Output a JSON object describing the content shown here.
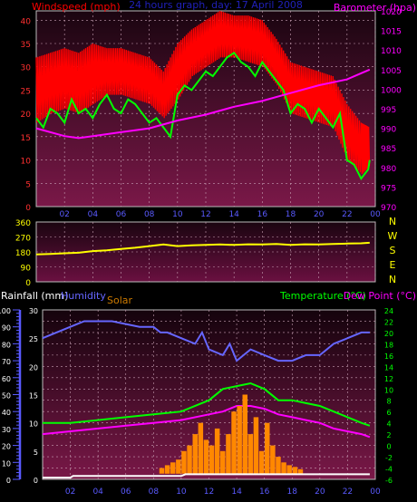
{
  "chart_data": [
    {
      "id": "wind_baro",
      "type": "line",
      "title": "24 hours graph, day: 17 April 2008",
      "left_label": "Windspeed (mph)",
      "right_label": "Barometer (hpa)",
      "ylim": [
        0,
        42
      ],
      "y_ticks": [
        0,
        5,
        10,
        15,
        20,
        25,
        30,
        35,
        40
      ],
      "y2lim": [
        970,
        1020
      ],
      "y2_ticks": [
        970,
        975,
        980,
        985,
        990,
        995,
        1000,
        1005,
        1010,
        1015,
        1020
      ],
      "x_ticks": [
        "02",
        "04",
        "06",
        "08",
        "10",
        "12",
        "14",
        "16",
        "18",
        "20",
        "22",
        "00"
      ],
      "x_range": [
        0,
        24
      ],
      "grid": true,
      "series": [
        {
          "name": "Windspeed",
          "axis": "left",
          "color": "#ff0000",
          "style": "band",
          "x": [
            0,
            1,
            2,
            3,
            4,
            5,
            6,
            7,
            8,
            9,
            10,
            11,
            12,
            13,
            14,
            15,
            16,
            17,
            18,
            19,
            20,
            21,
            22,
            23,
            23.6
          ],
          "low": [
            18,
            20,
            21,
            20,
            22,
            24,
            24,
            23,
            22,
            19,
            23,
            28,
            30,
            32,
            32,
            31,
            30,
            26,
            20,
            19,
            18,
            17,
            10,
            7,
            9
          ],
          "high": [
            32,
            33,
            34,
            33,
            35,
            34,
            34,
            33,
            32,
            29,
            35,
            38,
            40,
            42,
            41,
            41,
            40,
            36,
            31,
            30,
            29,
            28,
            22,
            18,
            17
          ]
        },
        {
          "name": "Wind",
          "axis": "left",
          "color": "#00ff00",
          "style": "line",
          "x": [
            0,
            0.5,
            1,
            1.5,
            2,
            2.5,
            3,
            3.5,
            4,
            4.5,
            5,
            5.5,
            6,
            6.5,
            7,
            7.5,
            8,
            8.5,
            9,
            9.5,
            10,
            10.5,
            11,
            11.5,
            12,
            12.5,
            13,
            13.5,
            14,
            14.5,
            15,
            15.5,
            16,
            16.5,
            17,
            17.5,
            18,
            18.5,
            19,
            19.5,
            20,
            20.5,
            21,
            21.5,
            22,
            22.5,
            23,
            23.5,
            23.6
          ],
          "y": [
            19,
            17,
            21,
            20,
            18,
            23,
            20,
            21,
            19,
            22,
            24,
            21,
            20,
            23,
            22,
            20,
            18,
            19,
            17,
            15,
            24,
            26,
            25,
            27,
            29,
            28,
            30,
            32,
            33,
            31,
            30,
            28,
            31,
            29,
            27,
            25,
            20,
            22,
            21,
            18,
            21,
            19,
            17,
            20,
            10,
            9,
            6,
            8,
            10
          ]
        },
        {
          "name": "Barometer",
          "axis": "right",
          "color": "#ff00ff",
          "style": "line",
          "x": [
            0,
            2,
            3,
            4,
            6,
            8,
            10,
            12,
            14,
            16,
            18,
            20,
            22,
            23.6
          ],
          "y": [
            990,
            988,
            987.5,
            988,
            989,
            990,
            992,
            993.5,
            995.5,
            997,
            999,
            1001,
            1002.5,
            1005
          ]
        }
      ]
    },
    {
      "id": "direction",
      "type": "line",
      "left_ticks": [
        0,
        90,
        180,
        270,
        360
      ],
      "ylim": [
        0,
        360
      ],
      "compass_labels": [
        "N",
        "W",
        "S",
        "E",
        "N"
      ],
      "x_range": [
        0,
        24
      ],
      "grid": true,
      "series": [
        {
          "name": "Wind direction",
          "color": "#ffff00",
          "x": [
            0,
            1,
            2,
            3,
            4,
            5,
            6,
            7,
            8,
            9,
            10,
            11,
            12,
            13,
            14,
            15,
            16,
            17,
            18,
            19,
            20,
            21,
            22,
            23,
            23.6
          ],
          "y": [
            165,
            168,
            172,
            175,
            185,
            190,
            198,
            205,
            215,
            225,
            215,
            220,
            222,
            225,
            222,
            226,
            225,
            228,
            222,
            226,
            225,
            228,
            230,
            232,
            235
          ]
        }
      ]
    },
    {
      "id": "rain_temp",
      "type": "line",
      "labels": {
        "rainfall": "Rainfall (mm)",
        "humidity": "Humidity",
        "solar": "Solar",
        "temperature": "Temperature (°C)",
        "dewpoint": "Dew Point (°C)"
      },
      "rain_ticks": [
        0,
        10,
        20,
        30,
        40,
        50,
        60,
        70,
        80,
        90,
        100
      ],
      "rain_lim": [
        0,
        100
      ],
      "hum_ticks": [
        0,
        5,
        10,
        15,
        20,
        25,
        30
      ],
      "hum_lim": [
        0,
        30
      ],
      "temp_ticks": [
        -6,
        -4,
        -2,
        0,
        2,
        4,
        6,
        8,
        10,
        12,
        14,
        16,
        18,
        20,
        22,
        24
      ],
      "temp_lim": [
        -6,
        24
      ],
      "x_ticks": [
        "02",
        "04",
        "06",
        "08",
        "10",
        "12",
        "14",
        "16",
        "18",
        "20",
        "22",
        "00"
      ],
      "x_range": [
        0,
        24
      ],
      "grid": true,
      "series": [
        {
          "name": "Humidity",
          "axis": "humidity",
          "color": "#6666ff",
          "x": [
            0,
            1,
            2,
            3,
            4,
            5,
            6,
            7,
            8,
            8.5,
            9,
            10,
            11,
            11.5,
            12,
            13,
            13.5,
            14,
            15,
            16,
            17,
            18,
            19,
            20,
            21,
            22,
            23,
            23.6
          ],
          "y": [
            25,
            26,
            27,
            28,
            28,
            28,
            27.5,
            27,
            27,
            26,
            26,
            25,
            24,
            26,
            23,
            22,
            24,
            21,
            23,
            22,
            21,
            21,
            22,
            22,
            24,
            25,
            26,
            26
          ]
        },
        {
          "name": "Temperature",
          "axis": "temp",
          "color": "#00ff00",
          "x": [
            0,
            2,
            4,
            6,
            8,
            10,
            12,
            13,
            14,
            15,
            16,
            17,
            18,
            19,
            20,
            21,
            22,
            23,
            23.6
          ],
          "y": [
            4,
            4,
            4.5,
            5,
            5.5,
            6,
            8,
            10,
            10.5,
            11,
            10,
            8,
            8,
            7.5,
            7,
            6,
            5,
            4,
            3.5
          ]
        },
        {
          "name": "Dew Point",
          "axis": "temp",
          "color": "#ff00ff",
          "x": [
            0,
            2,
            4,
            6,
            8,
            10,
            12,
            13,
            14,
            15,
            16,
            17,
            18,
            19,
            20,
            21,
            22,
            23,
            23.6
          ],
          "y": [
            2,
            2.5,
            3,
            3.5,
            4,
            4.5,
            5.5,
            6,
            7,
            7,
            6.5,
            5.5,
            5,
            4.5,
            4,
            3,
            2.5,
            2,
            1.5
          ]
        },
        {
          "name": "Solar",
          "axis": "temp",
          "color": "#ff8800",
          "style": "bars",
          "x": [
            8.6,
            9,
            9.4,
            9.8,
            10.2,
            10.6,
            11,
            11.4,
            11.8,
            12.2,
            12.6,
            13,
            13.4,
            13.8,
            14.2,
            14.6,
            15,
            15.4,
            15.8,
            16.2,
            16.6,
            17,
            17.4,
            17.8,
            18.2,
            18.6,
            19
          ],
          "y": [
            -4,
            -3.5,
            -3,
            -2.5,
            -1,
            0,
            2,
            4,
            1,
            0,
            3,
            -1,
            2,
            6,
            7,
            9,
            2,
            5,
            -1,
            4,
            0,
            -2,
            -3,
            -3.5,
            -3.8,
            -4.2,
            -5
          ]
        },
        {
          "name": "Rainfall",
          "axis": "rain",
          "color": "#ffffff",
          "x": [
            0,
            2,
            2.2,
            10,
            10.3,
            23.6
          ],
          "y": [
            1,
            1,
            2,
            2,
            3,
            3
          ]
        }
      ]
    }
  ]
}
